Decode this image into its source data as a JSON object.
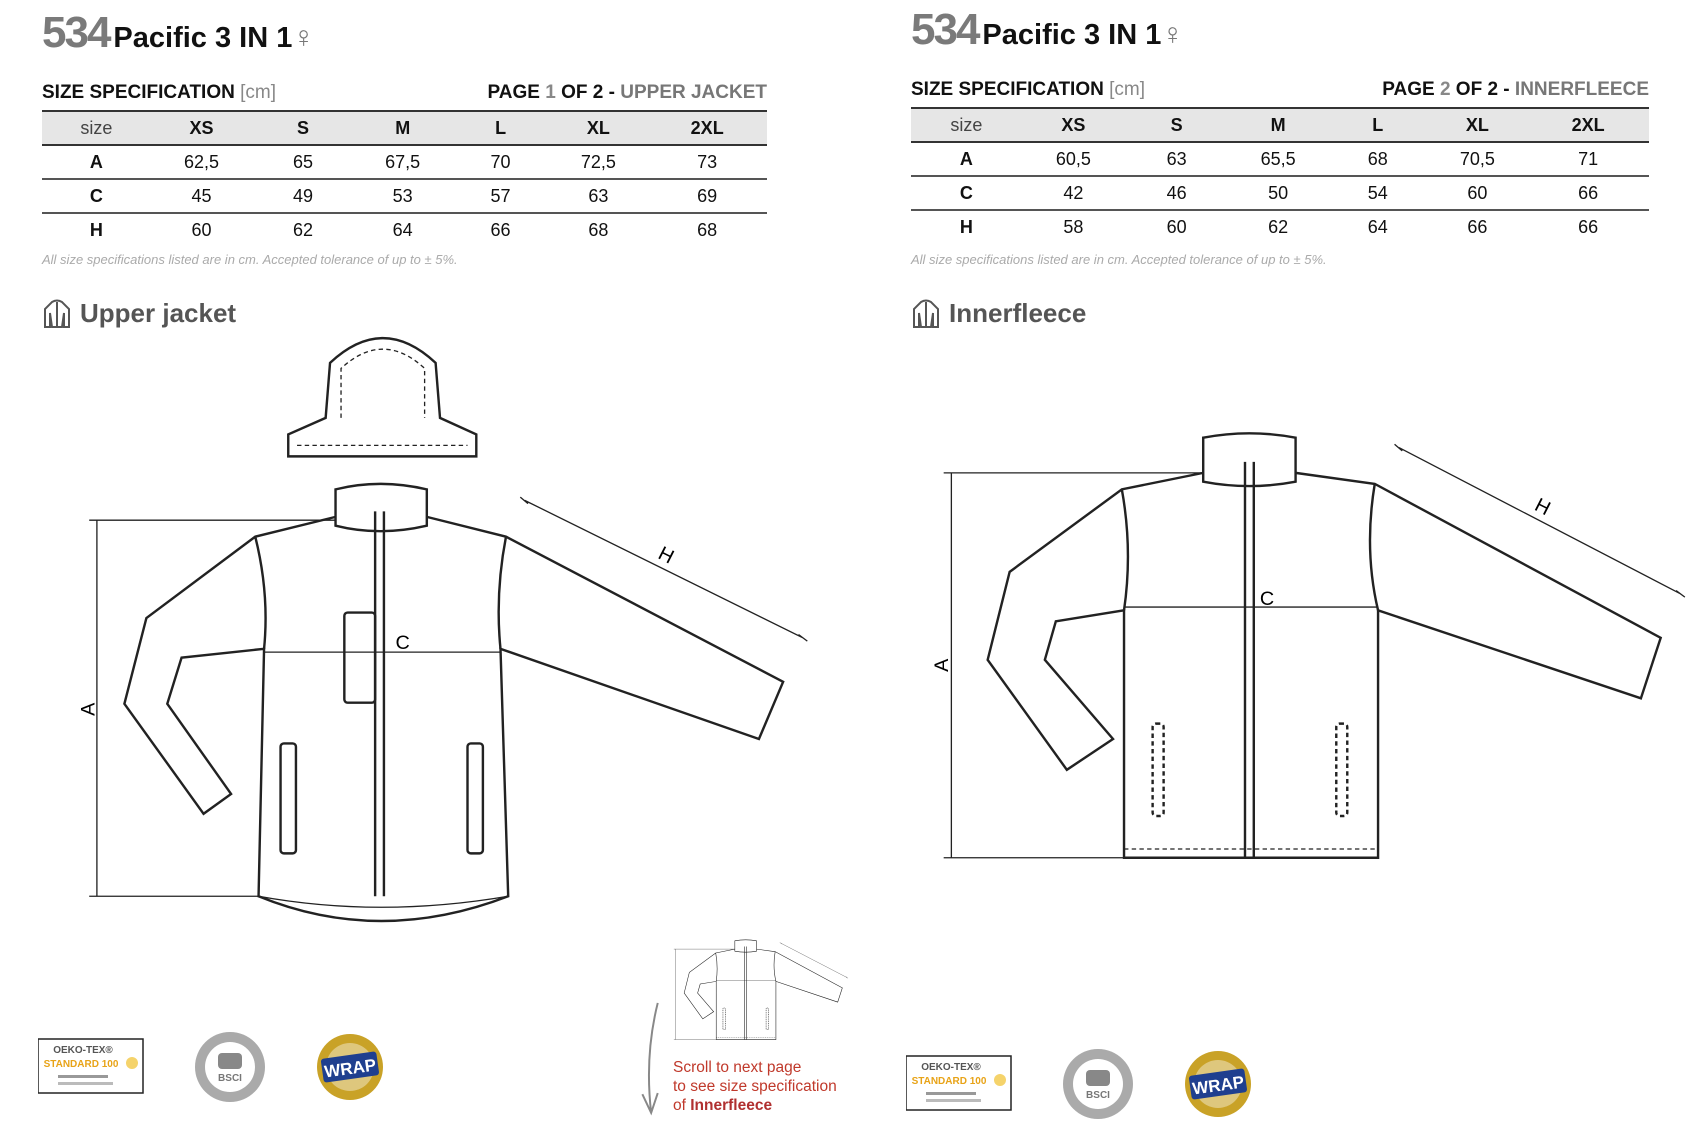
{
  "pages": [
    {
      "number": "534",
      "name": "Pacific 3 IN 1",
      "gender_symbol": "♀",
      "spec_label": "SIZE SPECIFICATION",
      "unit": "[cm]",
      "page_prefix": "PAGE",
      "page_num": "1",
      "page_of": "OF 2 -",
      "page_part": "UPPER JACKET",
      "headers": [
        "size",
        "XS",
        "S",
        "M",
        "L",
        "XL",
        "2XL"
      ],
      "rows": [
        [
          "A",
          "62,5",
          "65",
          "67,5",
          "70",
          "72,5",
          "73"
        ],
        [
          "C",
          "45",
          "49",
          "53",
          "57",
          "63",
          "69"
        ],
        [
          "H",
          "60",
          "62",
          "64",
          "66",
          "68",
          "68"
        ]
      ],
      "note": "All size specifications listed are in cm. Accepted tolerance of up to ± 5%.",
      "section": "Upper jacket"
    },
    {
      "number": "534",
      "name": "Pacific 3 IN 1",
      "gender_symbol": "♀",
      "spec_label": "SIZE SPECIFICATION",
      "unit": "[cm]",
      "page_prefix": "PAGE",
      "page_num": "2",
      "page_of": "OF 2 -",
      "page_part": "INNERFLEECE",
      "headers": [
        "size",
        "XS",
        "S",
        "M",
        "L",
        "XL",
        "2XL"
      ],
      "rows": [
        [
          "A",
          "60,5",
          "63",
          "65,5",
          "68",
          "70,5",
          "71"
        ],
        [
          "C",
          "42",
          "46",
          "50",
          "54",
          "60",
          "66"
        ],
        [
          "H",
          "58",
          "60",
          "62",
          "64",
          "66",
          "66"
        ]
      ],
      "note": "All size specifications listed are in cm. Accepted tolerance of up to ± 5%.",
      "section": "Innerfleece"
    }
  ],
  "diagram_labels": {
    "a": "A",
    "c": "C",
    "h": "H"
  },
  "scroll_hint": {
    "line1": "Scroll to next page",
    "line2": "to see size specification",
    "line3_prefix": "of",
    "line3_bold": "Innerfleece"
  },
  "logos": {
    "oeko": "OEKO-TEX® STANDARD 100",
    "bsci": "BSCI",
    "wrap": "WRAP"
  },
  "colors": {
    "hint_red": "#c0392b",
    "header_gray": "#e6e6e6",
    "number_gray": "#7a7a7a",
    "oeko_yellow": "#e8a317",
    "wrap_blue": "#1f3f8f",
    "wrap_gold": "#c9a227"
  }
}
